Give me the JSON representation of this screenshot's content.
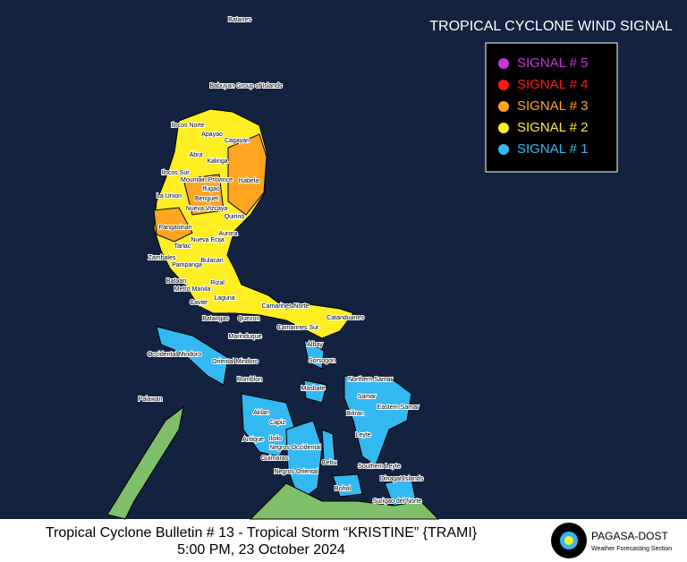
{
  "header": {
    "title": "TROPICAL CYCLONE WIND SIGNAL"
  },
  "legend": [
    {
      "name": "SIGNAL # 5",
      "color": "#cc33dd"
    },
    {
      "name": "SIGNAL # 4",
      "color": "#ff1a1a"
    },
    {
      "name": "SIGNAL # 3",
      "color": "#ffa51f"
    },
    {
      "name": "SIGNAL # 2",
      "color": "#ffee22"
    },
    {
      "name": "SIGNAL # 1",
      "color": "#33b8f2"
    }
  ],
  "places": [
    "Batanes",
    "Babuyan Group of Islands",
    "Ilocos Norte",
    "Apayao",
    "Cagayan",
    "Abra",
    "Kalinga",
    "Ilocos Sur",
    "Mountain Province",
    "Isabela",
    "Ifugao",
    "La Union",
    "Benguet",
    "Nueva Vizcaya",
    "Quirino",
    "Pangasinan",
    "Aurora",
    "Nueva Ecija",
    "Tarlac",
    "Zambales",
    "Bulacan",
    "Pampanga",
    "Bataan",
    "Rizal",
    "Metro Manila",
    "Cavite",
    "Laguna",
    "Camarines Norte",
    "Catanduanes",
    "Batangas",
    "Quezon",
    "Camarines Sur",
    "Marinduque",
    "Albay",
    "Occidental Mindoro",
    "Oriental Mindoro",
    "Sorsogon",
    "Northern Samar",
    "Romblon",
    "Masbate",
    "Palawan",
    "Samar",
    "Eastern Samar",
    "Aklan",
    "Biliran",
    "Capiz",
    "Leyte",
    "Antique",
    "Iloilo",
    "Negros Occidental",
    "Guimaras",
    "Southern Leyte",
    "Cebu",
    "Negros Oriental",
    "Dinagat Islands",
    "Bohol",
    "Surigao del Norte"
  ],
  "footer": {
    "bulletin": "Tropical Cyclone Bulletin # 13 - Tropical Storm “KRISTINE” {TRAMI}",
    "time": "5:00 PM, 23 October 2024",
    "agency": "PAGASA-DOST",
    "section": "Weather Forecasting Section"
  }
}
